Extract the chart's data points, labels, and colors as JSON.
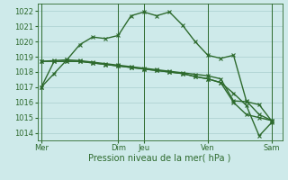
{
  "background_color": "#ceeaea",
  "grid_color": "#aacece",
  "line_color": "#2d6a2d",
  "xlabel": "Pression niveau de la mer( hPa )",
  "ylim": [
    1013.5,
    1022.5
  ],
  "yticks": [
    1014,
    1015,
    1016,
    1017,
    1018,
    1019,
    1020,
    1021,
    1022
  ],
  "day_labels": [
    "Mer",
    "Dim",
    "Jeu",
    "Ven",
    "Sam"
  ],
  "day_positions": [
    0,
    6,
    8,
    13,
    18
  ],
  "xlim": [
    -0.3,
    18.8
  ],
  "series1_x": [
    0,
    1,
    2,
    3,
    4,
    5,
    6,
    7,
    8,
    9,
    10,
    11,
    12,
    13,
    14,
    15,
    16,
    17,
    18
  ],
  "series1_y": [
    1017.0,
    1017.9,
    1018.8,
    1019.8,
    1020.3,
    1020.2,
    1020.4,
    1021.7,
    1021.95,
    1021.7,
    1021.95,
    1021.1,
    1020.0,
    1019.1,
    1018.9,
    1019.1,
    1016.1,
    1015.2,
    1014.8
  ],
  "series2_x": [
    0,
    1,
    2,
    3,
    4,
    5,
    6,
    7,
    8,
    9,
    10,
    11,
    12,
    13,
    14,
    15,
    16,
    17,
    18
  ],
  "series2_y": [
    1018.7,
    1018.75,
    1018.8,
    1018.75,
    1018.65,
    1018.55,
    1018.45,
    1018.35,
    1018.25,
    1018.15,
    1018.05,
    1017.95,
    1017.85,
    1017.75,
    1017.55,
    1016.1,
    1016.05,
    1015.85,
    1014.75
  ],
  "series3_x": [
    0,
    1,
    2,
    3,
    4,
    5,
    6,
    7,
    8,
    9,
    10,
    11,
    12,
    13,
    14,
    15,
    16,
    17,
    18
  ],
  "series3_y": [
    1018.7,
    1018.7,
    1018.7,
    1018.7,
    1018.6,
    1018.5,
    1018.4,
    1018.3,
    1018.2,
    1018.1,
    1018.0,
    1017.9,
    1017.7,
    1017.55,
    1017.3,
    1016.6,
    1015.8,
    1013.8,
    1014.7
  ],
  "series4_x": [
    0,
    1,
    2,
    3,
    4,
    5,
    6,
    7,
    8,
    9,
    10,
    11,
    12,
    13,
    14,
    15,
    16,
    17,
    18
  ],
  "series4_y": [
    1017.0,
    1018.7,
    1018.7,
    1018.7,
    1018.6,
    1018.5,
    1018.4,
    1018.3,
    1018.2,
    1018.1,
    1018.0,
    1017.9,
    1017.7,
    1017.55,
    1017.3,
    1016.0,
    1015.2,
    1015.0,
    1014.8
  ]
}
